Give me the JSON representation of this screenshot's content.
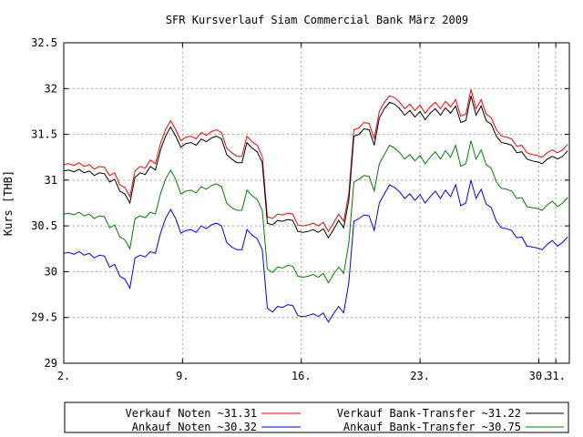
{
  "chart_data": {
    "type": "line",
    "title": "SFR Kursverlauf Siam Commercial Bank März 2009",
    "ylabel": "Kurs [THB]",
    "xlabel": "",
    "ylim": [
      29,
      32.5
    ],
    "yticks": [
      "29",
      "29.5",
      "30",
      "30.5",
      "31",
      "31.5",
      "32",
      "32.5"
    ],
    "xticks": [
      {
        "label": "2.",
        "day": 2
      },
      {
        "label": "9.",
        "day": 9
      },
      {
        "label": "16.",
        "day": 16
      },
      {
        "label": "23.",
        "day": 23
      },
      {
        "label": "30.",
        "day": 30
      },
      {
        "label": "31.",
        "day": 31
      }
    ],
    "xlim": [
      2,
      31.8
    ],
    "grid": true,
    "legend_position": "below",
    "x": [
      2,
      2.3,
      2.6,
      2.9,
      3.2,
      3.5,
      3.8,
      4.1,
      4.4,
      4.7,
      5.0,
      5.3,
      5.6,
      5.9,
      6.2,
      6.5,
      6.8,
      7.1,
      7.4,
      7.7,
      8.0,
      8.3,
      8.6,
      8.9,
      9.2,
      9.5,
      9.8,
      10.1,
      10.4,
      10.7,
      11.0,
      11.3,
      11.6,
      11.9,
      12.2,
      12.5,
      12.8,
      13.1,
      13.4,
      13.7,
      14.0,
      14.3,
      14.6,
      14.9,
      15.2,
      15.5,
      15.8,
      16.1,
      16.4,
      16.7,
      17.0,
      17.3,
      17.6,
      17.9,
      18.2,
      18.5,
      18.8,
      19.1,
      19.4,
      19.7,
      20.0,
      20.3,
      20.6,
      20.9,
      21.2,
      21.5,
      21.8,
      22.1,
      22.4,
      22.7,
      23.0,
      23.3,
      23.6,
      23.9,
      24.2,
      24.5,
      24.8,
      25.1,
      25.4,
      25.7,
      26.0,
      26.3,
      26.6,
      26.9,
      27.2,
      27.5,
      27.8,
      28.1,
      28.4,
      28.7,
      29.0,
      29.3,
      29.6,
      29.9,
      30.2,
      30.5,
      30.8,
      31.1,
      31.4,
      31.7
    ],
    "series": [
      {
        "name": "Verkauf Noten ~31.31",
        "color": "#ff0000",
        "values": [
          31.17,
          31.18,
          31.16,
          31.19,
          31.15,
          31.17,
          31.12,
          31.15,
          31.14,
          31.05,
          31.08,
          30.95,
          30.92,
          30.82,
          31.1,
          31.15,
          31.13,
          31.22,
          31.18,
          31.4,
          31.55,
          31.65,
          31.55,
          31.43,
          31.47,
          31.48,
          31.45,
          31.52,
          31.49,
          31.53,
          31.55,
          31.52,
          31.35,
          31.3,
          31.26,
          31.26,
          31.48,
          31.42,
          31.38,
          31.26,
          30.6,
          30.58,
          30.63,
          30.62,
          30.64,
          30.63,
          30.51,
          30.5,
          30.51,
          30.53,
          30.5,
          30.54,
          30.44,
          30.53,
          30.63,
          30.55,
          30.85,
          31.55,
          31.57,
          31.63,
          31.62,
          31.45,
          31.75,
          31.85,
          31.92,
          31.9,
          31.85,
          31.78,
          31.83,
          31.76,
          31.82,
          31.73,
          31.8,
          31.85,
          31.78,
          31.86,
          31.8,
          31.88,
          31.7,
          31.72,
          31.99,
          31.78,
          31.88,
          31.72,
          31.68,
          31.55,
          31.48,
          31.47,
          31.45,
          31.37,
          31.38,
          31.3,
          31.28,
          31.27,
          31.25,
          31.3,
          31.33,
          31.3,
          31.33,
          31.39
        ]
      },
      {
        "name": "Verkauf Bank-Transfer ~31.22",
        "color": "#000000",
        "values": [
          31.1,
          31.11,
          31.09,
          31.12,
          31.08,
          31.1,
          31.05,
          31.08,
          31.07,
          30.98,
          31.01,
          30.88,
          30.85,
          30.75,
          31.03,
          31.08,
          31.06,
          31.15,
          31.11,
          31.33,
          31.48,
          31.58,
          31.48,
          31.36,
          31.4,
          31.41,
          31.38,
          31.45,
          31.42,
          31.46,
          31.48,
          31.45,
          31.28,
          31.23,
          31.19,
          31.19,
          31.41,
          31.35,
          31.31,
          31.19,
          30.53,
          30.51,
          30.56,
          30.55,
          30.57,
          30.56,
          30.44,
          30.43,
          30.44,
          30.46,
          30.43,
          30.47,
          30.37,
          30.46,
          30.56,
          30.48,
          30.78,
          31.48,
          31.5,
          31.56,
          31.55,
          31.38,
          31.68,
          31.78,
          31.85,
          31.83,
          31.78,
          31.71,
          31.76,
          31.69,
          31.75,
          31.66,
          31.73,
          31.78,
          31.71,
          31.79,
          31.73,
          31.81,
          31.63,
          31.65,
          31.92,
          31.71,
          31.81,
          31.65,
          31.61,
          31.48,
          31.41,
          31.4,
          31.38,
          31.3,
          31.31,
          31.23,
          31.21,
          31.2,
          31.18,
          31.23,
          31.26,
          31.23,
          31.26,
          31.32
        ]
      },
      {
        "name": "Ankauf Noten ~30.32",
        "color": "#0000ff",
        "values": [
          30.2,
          30.21,
          30.19,
          30.22,
          30.18,
          30.2,
          30.15,
          30.18,
          30.17,
          30.05,
          30.08,
          29.95,
          29.92,
          29.82,
          30.15,
          30.18,
          30.16,
          30.22,
          30.2,
          30.42,
          30.58,
          30.68,
          30.58,
          30.42,
          30.45,
          30.46,
          30.43,
          30.5,
          30.47,
          30.51,
          30.53,
          30.5,
          30.32,
          30.27,
          30.24,
          30.24,
          30.46,
          30.4,
          30.36,
          30.24,
          29.6,
          29.56,
          29.62,
          29.61,
          29.64,
          29.63,
          29.52,
          29.51,
          29.52,
          29.54,
          29.51,
          29.55,
          29.45,
          29.54,
          29.62,
          29.55,
          29.88,
          30.55,
          30.58,
          30.62,
          30.61,
          30.45,
          30.75,
          30.85,
          30.95,
          30.92,
          30.87,
          30.8,
          30.85,
          30.78,
          30.84,
          30.75,
          30.82,
          30.88,
          30.8,
          30.89,
          30.82,
          30.95,
          30.72,
          30.75,
          31.0,
          30.8,
          30.9,
          30.74,
          30.7,
          30.55,
          30.48,
          30.47,
          30.45,
          30.37,
          30.38,
          30.28,
          30.27,
          30.26,
          30.24,
          30.3,
          30.34,
          30.28,
          30.32,
          30.38
        ]
      },
      {
        "name": "Ankauf Bank-Transfer ~30.75",
        "color": "#008000",
        "values": [
          30.63,
          30.64,
          30.62,
          30.65,
          30.61,
          30.63,
          30.58,
          30.61,
          30.6,
          30.48,
          30.51,
          30.38,
          30.35,
          30.25,
          30.58,
          30.61,
          30.59,
          30.65,
          30.63,
          30.85,
          31.01,
          31.11,
          31.01,
          30.85,
          30.88,
          30.89,
          30.86,
          30.93,
          30.9,
          30.94,
          30.96,
          30.93,
          30.75,
          30.7,
          30.67,
          30.67,
          30.89,
          30.83,
          30.79,
          30.67,
          30.03,
          29.99,
          30.05,
          30.04,
          30.07,
          30.06,
          29.95,
          29.94,
          29.95,
          29.97,
          29.94,
          29.98,
          29.88,
          29.97,
          30.05,
          29.98,
          30.31,
          30.98,
          31.01,
          31.05,
          31.04,
          30.88,
          31.18,
          31.28,
          31.38,
          31.35,
          31.3,
          31.23,
          31.28,
          31.21,
          31.27,
          31.18,
          31.25,
          31.31,
          31.23,
          31.32,
          31.25,
          31.38,
          31.15,
          31.18,
          31.43,
          31.23,
          31.33,
          31.17,
          31.13,
          30.98,
          30.91,
          30.9,
          30.88,
          30.8,
          30.81,
          30.71,
          30.7,
          30.69,
          30.67,
          30.73,
          30.77,
          30.71,
          30.75,
          30.81
        ]
      }
    ],
    "legend_entries": [
      {
        "series": 0
      },
      {
        "series": 1
      },
      {
        "series": 2
      },
      {
        "series": 3
      }
    ]
  }
}
